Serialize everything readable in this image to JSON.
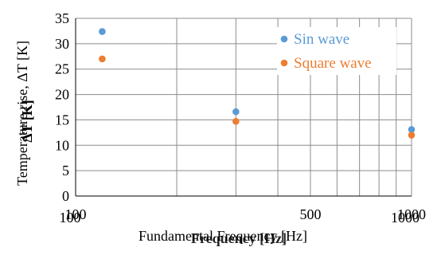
{
  "chart_data": {
    "type": "scatter",
    "xlabel": "Fundamental Frequency  [Hz]",
    "xlabel_overlay": "Frequency [Hz]",
    "ylabel": "Temperature rise, ΔT [K]",
    "ylabel_overlay": "ΔT [K]",
    "x_scale": "log",
    "xlim": [
      100,
      1000
    ],
    "ylim": [
      0,
      35
    ],
    "x_ticks": [
      100,
      500,
      1000
    ],
    "x_tick_labels": [
      "100",
      "500",
      "1000"
    ],
    "x_tick_labels_overlay": [
      "100",
      "1000"
    ],
    "y_ticks": [
      0,
      5,
      10,
      15,
      20,
      25,
      30,
      35
    ],
    "grid": true,
    "legend_position": "top-right",
    "series": [
      {
        "name": "Sin wave",
        "color": "#5b9bd5",
        "x": [
          120,
          300,
          1000
        ],
        "y": [
          32.4,
          16.6,
          13.1
        ]
      },
      {
        "name": "Square wave",
        "color": "#ed7d31",
        "x": [
          120,
          300,
          1000
        ],
        "y": [
          27.0,
          14.7,
          12.0
        ]
      }
    ]
  }
}
